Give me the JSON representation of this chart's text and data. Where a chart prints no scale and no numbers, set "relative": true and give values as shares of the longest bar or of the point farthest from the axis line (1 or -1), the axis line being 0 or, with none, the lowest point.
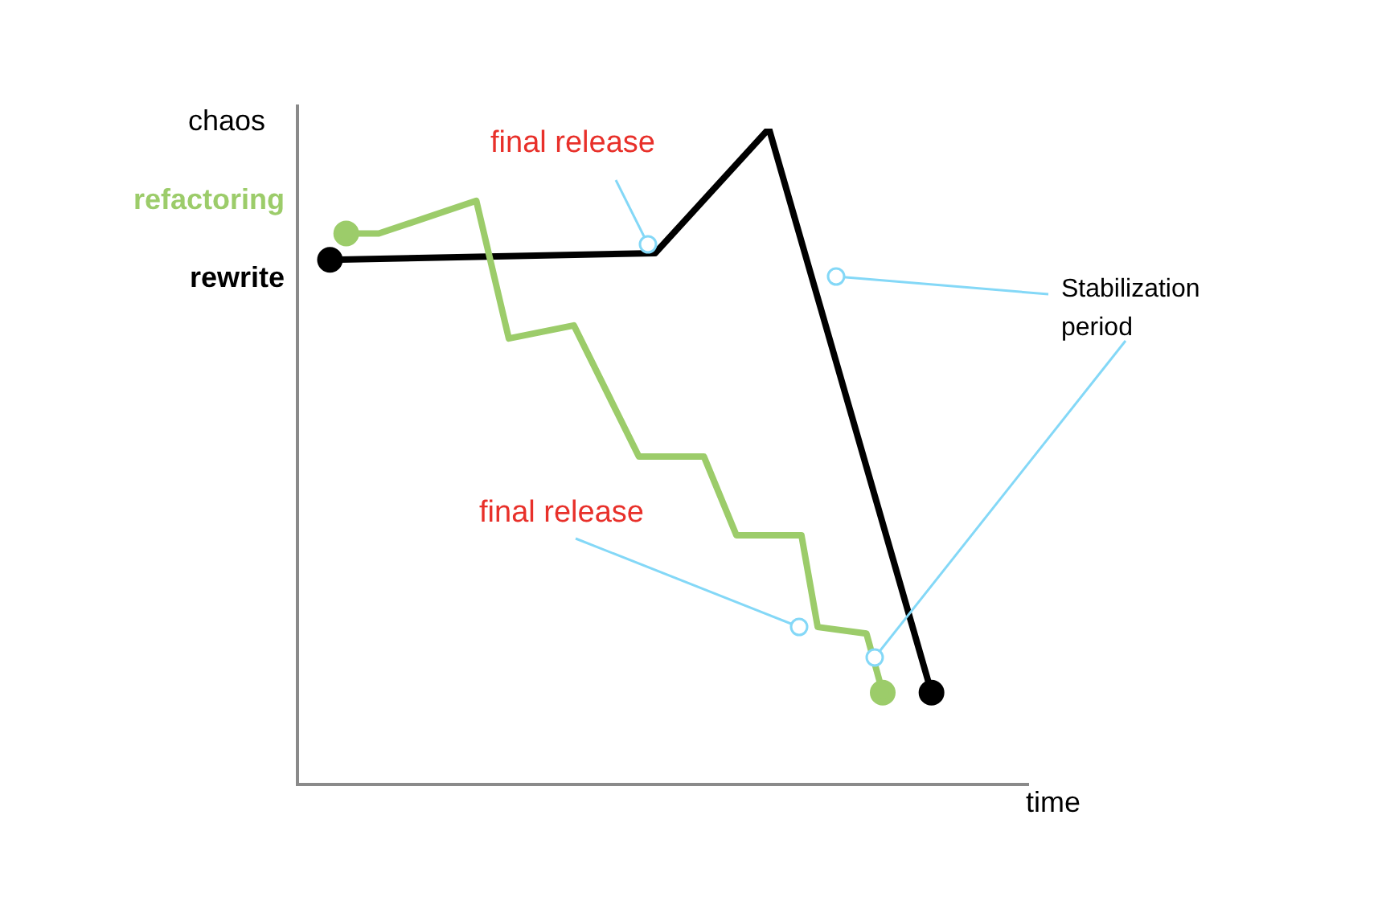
{
  "chart_data": {
    "type": "line",
    "relative": true,
    "xlabel": "time",
    "ylabel": "chaos",
    "categories": [
      null,
      null,
      null,
      null,
      null,
      null,
      null,
      null,
      null,
      null,
      null,
      null,
      null,
      null,
      null,
      null,
      null,
      null,
      null,
      null,
      null,
      null,
      null,
      null,
      null,
      null,
      null,
      null,
      null,
      null,
      null,
      null,
      null,
      null,
      null,
      null,
      null,
      null,
      null,
      null,
      null,
      null,
      null,
      null,
      null,
      null
    ],
    "series": [
      {
        "name": "refactoring",
        "color": "#9ccc6a",
        "values": [
          null,
          null,
          null,
          0.84,
          null,
          0.84,
          null,
          null,
          null,
          null,
          null,
          0.89,
          null,
          0.68,
          null,
          null,
          null,
          0.7,
          null,
          null,
          null,
          0.5,
          null,
          null,
          null,
          0.5,
          null,
          0.38,
          null,
          null,
          null,
          0.38,
          0.24,
          null,
          null,
          0.23,
          0.14,
          null,
          null,
          null,
          null,
          null,
          null,
          null,
          null,
          null
        ]
      },
      {
        "name": "rewrite",
        "color": "#000000",
        "values": [
          null,
          null,
          0.8,
          null,
          null,
          null,
          null,
          null,
          null,
          null,
          null,
          null,
          null,
          null,
          null,
          null,
          null,
          null,
          null,
          null,
          null,
          null,
          0.81,
          null,
          null,
          null,
          null,
          null,
          null,
          1,
          null,
          null,
          null,
          null,
          null,
          null,
          null,
          null,
          null,
          0.14,
          null,
          null,
          null,
          null,
          null,
          null
        ]
      }
    ],
    "annotations": [
      "final release",
      "final release",
      "Stabilization\nperiod"
    ],
    "line_style": "solid",
    "legend": false
  }
}
